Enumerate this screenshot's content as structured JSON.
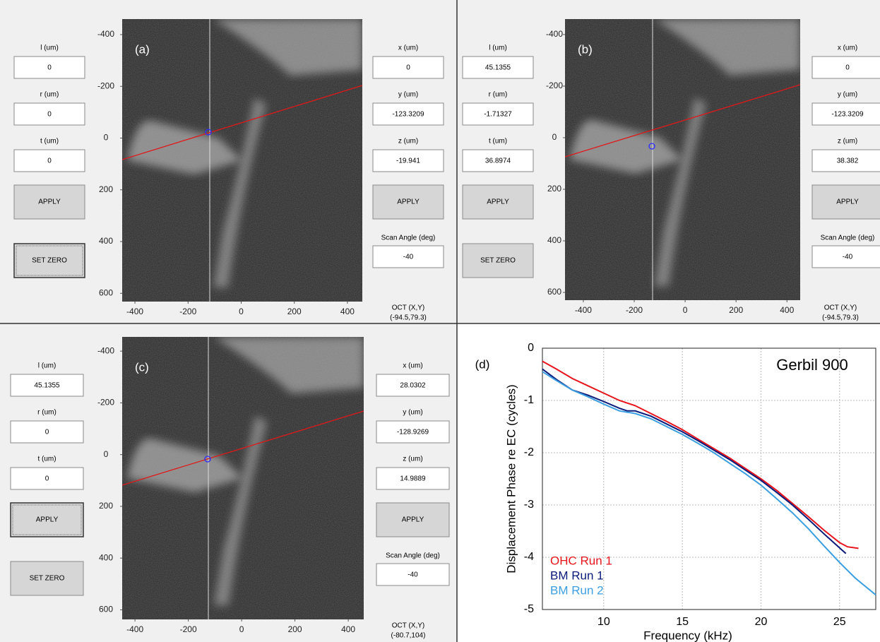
{
  "panels": [
    {
      "label": "(a)",
      "left": [
        {
          "label": "l (um)",
          "value": "0"
        },
        {
          "label": "r (um)",
          "value": "0"
        },
        {
          "label": "t (um)",
          "value": "0"
        }
      ],
      "right": [
        {
          "label": "x (um)",
          "value": "0"
        },
        {
          "label": "y (um)",
          "value": "-123.3209"
        },
        {
          "label": "z (um)",
          "value": "-19.941"
        }
      ],
      "apply_left": "APPLY",
      "apply_right": "APPLY",
      "set_zero": "SET ZERO",
      "scan_angle": {
        "label": "Scan Angle (deg)",
        "value": "-40"
      },
      "oct": {
        "label": "OCT (X,Y)",
        "value": "(-94.5,79.3)"
      },
      "image": {
        "xlim": [
          -448,
          456
        ],
        "ylim": [
          -460,
          632
        ],
        "xticks": [
          -400,
          -200,
          0,
          200,
          400
        ],
        "yticks": [
          -400,
          -200,
          0,
          200,
          400,
          600
        ]
      }
    },
    {
      "label": "(b)",
      "left": [
        {
          "label": "l (um)",
          "value": "45.1355"
        },
        {
          "label": "r (um)",
          "value": "-1.71327"
        },
        {
          "label": "t (um)",
          "value": "36.8974"
        }
      ],
      "right": [
        {
          "label": "x (um)",
          "value": "0"
        },
        {
          "label": "y (um)",
          "value": "-123.3209"
        },
        {
          "label": "z (um)",
          "value": "38.382"
        }
      ],
      "apply_left": "APPLY",
      "apply_right": "APPLY",
      "set_zero": "SET ZERO",
      "scan_angle": {
        "label": "Scan Angle (deg)",
        "value": "-40"
      },
      "oct": {
        "label": "OCT (X,Y)",
        "value": "(-94.5,79.3)"
      },
      "image": {
        "xlim": [
          -472,
          452
        ],
        "ylim": [
          -460,
          630
        ],
        "xticks": [
          -400,
          -200,
          0,
          200,
          400
        ],
        "yticks": [
          -400,
          -200,
          0,
          200,
          400,
          600
        ]
      }
    },
    {
      "label": "(c)",
      "left": [
        {
          "label": "l (um)",
          "value": "45.1355"
        },
        {
          "label": "r (um)",
          "value": "0"
        },
        {
          "label": "t (um)",
          "value": "0"
        }
      ],
      "right": [
        {
          "label": "x (um)",
          "value": "28.0302"
        },
        {
          "label": "y (um)",
          "value": "-128.9269"
        },
        {
          "label": "z (um)",
          "value": "14.9889"
        }
      ],
      "apply_left": "APPLY",
      "apply_right": "APPLY",
      "set_zero": "SET ZERO",
      "scan_angle": {
        "label": "Scan Angle (deg)",
        "value": "-40"
      },
      "oct": {
        "label": "OCT (X,Y)",
        "value": "(-80.7,104)"
      },
      "image": {
        "xlim": [
          -448,
          458
        ],
        "ylim": [
          -455,
          637
        ],
        "xticks": [
          -400,
          -200,
          0,
          200,
          400
        ],
        "yticks": [
          -400,
          -200,
          0,
          200,
          400,
          600
        ]
      }
    }
  ],
  "chart_data": {
    "type": "line",
    "label": "(d)",
    "title": "Gerbil 900",
    "x_label": "Frequency (kHz)",
    "y_label": "Displacement Phase re EC (cycles)",
    "xlim": [
      6.1,
      27.3
    ],
    "ylim": [
      -5,
      0
    ],
    "xticks": [
      10,
      15,
      20,
      25
    ],
    "yticks": [
      0,
      -1,
      -2,
      -3,
      -4,
      -5
    ],
    "grid": true,
    "series": [
      {
        "name": "OHC Run 1",
        "color": "#e8141b",
        "x": [
          6.1,
          7,
          8,
          9,
          10,
          11,
          12,
          13,
          14,
          15,
          16,
          17,
          18,
          19,
          20,
          21,
          22,
          23,
          24,
          25,
          25.5,
          26.2
        ],
        "values": [
          -0.25,
          -0.4,
          -0.58,
          -0.72,
          -0.86,
          -1.0,
          -1.1,
          -1.25,
          -1.4,
          -1.56,
          -1.74,
          -1.92,
          -2.1,
          -2.3,
          -2.5,
          -2.72,
          -2.97,
          -3.22,
          -3.48,
          -3.72,
          -3.8,
          -3.83
        ]
      },
      {
        "name": "BM Run 1",
        "color": "#0a1a7a",
        "x": [
          6.1,
          7,
          8,
          9,
          10,
          11,
          11.5,
          12,
          13,
          14,
          15,
          16,
          17,
          18,
          19,
          20,
          21,
          22,
          23,
          24,
          25,
          25.4
        ],
        "values": [
          -0.4,
          -0.6,
          -0.8,
          -0.9,
          -1.02,
          -1.15,
          -1.2,
          -1.2,
          -1.3,
          -1.45,
          -1.6,
          -1.77,
          -1.95,
          -2.13,
          -2.33,
          -2.53,
          -2.76,
          -3.0,
          -3.27,
          -3.55,
          -3.82,
          -3.93
        ]
      },
      {
        "name": "BM Run 2",
        "color": "#3a9ee0",
        "x": [
          6.1,
          7,
          8,
          9,
          10,
          11,
          12,
          13,
          14,
          15,
          16,
          17,
          18,
          19,
          20,
          21,
          22,
          23,
          24,
          25,
          26,
          27.3
        ],
        "values": [
          -0.45,
          -0.62,
          -0.8,
          -0.93,
          -1.07,
          -1.2,
          -1.25,
          -1.35,
          -1.5,
          -1.65,
          -1.82,
          -2.0,
          -2.2,
          -2.4,
          -2.62,
          -2.88,
          -3.15,
          -3.45,
          -3.78,
          -4.1,
          -4.4,
          -4.72
        ]
      }
    ]
  }
}
